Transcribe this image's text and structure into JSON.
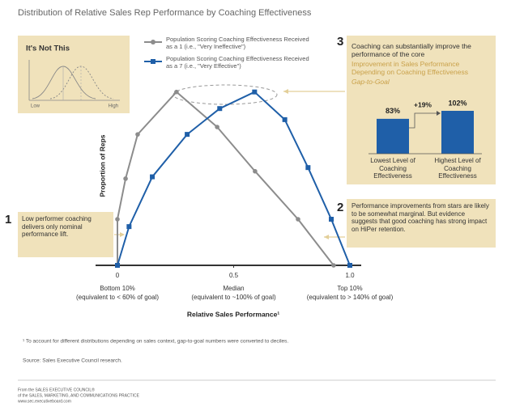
{
  "title": "Distribution of Relative Sales Rep Performance by Coaching Effectiveness",
  "chart_data": [
    {
      "type": "line",
      "xlabel": "Relative Sales Performance¹",
      "ylabel": "Proportion of Reps",
      "xlim": [
        0,
        1
      ],
      "ylim": [
        0,
        100
      ],
      "xticks": [
        0,
        0.5,
        {
          "value": 1,
          "label": "1.0"
        }
      ],
      "x_tick_notes": [
        [
          "Bottom 10%",
          "(equivalent to < 60% of goal)"
        ],
        [
          "Median",
          "(equivalent to ~100% of goal)"
        ],
        [
          "Top 10%",
          "(equivalent to > 140% of goal)"
        ]
      ],
      "series": [
        {
          "name": "Population Scoring Coaching Effectiveness Received as a 1 (i.e., \"Very Ineffective\")",
          "color": "#8c8c8c",
          "x": [
            0,
            0,
            0.035,
            0.087,
            0.254,
            0.429,
            0.592,
            0.777,
            0.93
          ],
          "values": [
            0,
            25,
            47,
            71,
            94,
            75,
            51,
            25,
            0
          ]
        },
        {
          "name": "Population Scoring Coaching Effectiveness Received as a 7 (i.e., \"Very Effective\")",
          "color": "#1f5fa8",
          "x": [
            0,
            0.05,
            0.15,
            0.3,
            0.44,
            0.59,
            0.72,
            0.82,
            0.92,
            1
          ],
          "values": [
            0,
            21,
            48,
            71,
            85,
            94,
            79,
            53,
            25,
            0
          ]
        }
      ]
    },
    {
      "type": "bar",
      "title": "Improvement in Sales Performance Depending on Coaching Effectiveness",
      "subtitle": "Gap-to-Goal",
      "categories": [
        "Lowest Level of Coaching Effectiveness",
        "Highest Level of Coaching Effectiveness"
      ],
      "values": [
        83,
        102
      ],
      "value_labels": [
        "83%",
        "102%"
      ],
      "annotation": "+19%",
      "color": "#1f5fa8"
    }
  ],
  "inset": {
    "title": "It's Not This",
    "low": "Low",
    "high": "High"
  },
  "callouts": [
    {
      "number": 1,
      "text": "Low performer coaching delivers only nominal performance lift."
    },
    {
      "number": 2,
      "text": "Performance improvements from stars are likely to be somewhat marginal. But evidence suggests that good coaching has strong impact on HiPer retention."
    },
    {
      "number": 3,
      "text": "Coaching can substantially improve the performance of the core"
    }
  ],
  "footnote": "¹ To account for different distributions depending on sales context, gap-to-goal numbers were converted to deciles.",
  "source": "Source: Sales Executive Council research.",
  "footer": [
    "From the SALES EXECUTIVE COUNCIL®",
    "of the SALES, MARKETING, AND COMMUNICATIONS PRACTICE",
    "www.sec.executiveboard.com"
  ]
}
